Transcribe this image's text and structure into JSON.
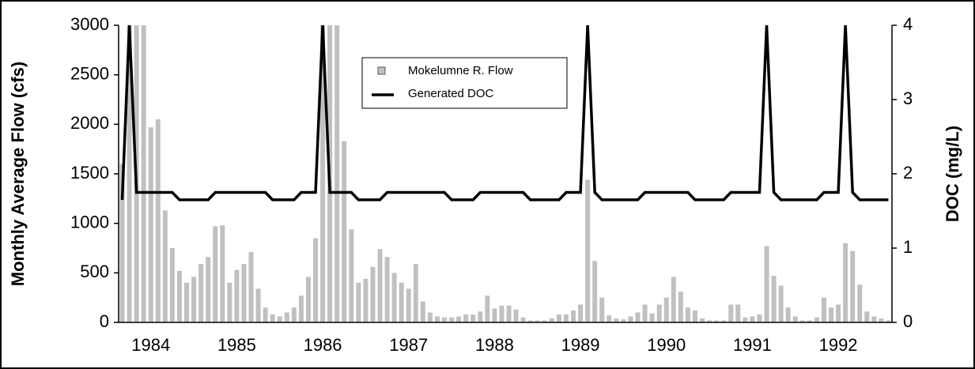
{
  "chart_data": {
    "type": "bar-line",
    "y_label": "Monthly Average Flow (cfs)",
    "y2_label": "DOC (mg/L)",
    "categories": [
      null,
      null,
      null,
      null,
      "1984",
      null,
      null,
      null,
      null,
      null,
      null,
      null,
      null,
      null,
      null,
      null,
      "1985",
      null,
      null,
      null,
      null,
      null,
      null,
      null,
      null,
      null,
      null,
      null,
      "1986",
      null,
      null,
      null,
      null,
      null,
      null,
      null,
      null,
      null,
      null,
      null,
      "1987",
      null,
      null,
      null,
      null,
      null,
      null,
      null,
      null,
      null,
      null,
      null,
      "1988",
      null,
      null,
      null,
      null,
      null,
      null,
      null,
      null,
      null,
      null,
      null,
      "1989",
      null,
      null,
      null,
      null,
      null,
      null,
      null,
      null,
      null,
      null,
      null,
      "1990",
      null,
      null,
      null,
      null,
      null,
      null,
      null,
      null,
      null,
      null,
      null,
      "1991",
      null,
      null,
      null,
      null,
      null,
      null,
      null,
      null,
      null,
      null,
      null,
      "1992",
      null,
      null,
      null,
      null,
      null,
      null,
      null
    ],
    "series": [
      {
        "name": "Mokelumne R. Flow",
        "kind": "bar",
        "color": "#c0c0c0",
        "values": [
          1600,
          3000,
          3000,
          3000,
          1970,
          2050,
          1130,
          750,
          520,
          400,
          460,
          590,
          660,
          970,
          980,
          400,
          530,
          590,
          710,
          340,
          150,
          80,
          60,
          100,
          150,
          270,
          460,
          850,
          3000,
          3000,
          3000,
          1830,
          940,
          400,
          440,
          560,
          740,
          660,
          500,
          400,
          340,
          590,
          210,
          100,
          60,
          50,
          50,
          60,
          80,
          80,
          110,
          270,
          140,
          170,
          170,
          130,
          50,
          20,
          20,
          20,
          40,
          80,
          80,
          120,
          180,
          1440,
          620,
          250,
          70,
          40,
          30,
          60,
          100,
          180,
          90,
          180,
          250,
          460,
          310,
          150,
          120,
          40,
          20,
          20,
          20,
          180,
          180,
          50,
          60,
          80,
          770,
          470,
          370,
          150,
          60,
          20,
          20,
          50,
          250,
          150,
          180,
          800,
          720,
          380,
          110,
          60,
          40,
          20
        ]
      },
      {
        "name": "Generated DOC",
        "kind": "line",
        "axis": "y2",
        "color": "#000000",
        "values": [
          1.65,
          4,
          1.75,
          1.75,
          1.75,
          1.75,
          1.75,
          1.75,
          1.65,
          1.65,
          1.65,
          1.65,
          1.65,
          1.75,
          1.75,
          1.75,
          1.75,
          1.75,
          1.75,
          1.75,
          1.75,
          1.65,
          1.65,
          1.65,
          1.65,
          1.75,
          1.75,
          1.75,
          4,
          1.75,
          1.75,
          1.75,
          1.75,
          1.65,
          1.65,
          1.65,
          1.65,
          1.75,
          1.75,
          1.75,
          1.75,
          1.75,
          1.75,
          1.75,
          1.75,
          1.75,
          1.65,
          1.65,
          1.65,
          1.65,
          1.75,
          1.75,
          1.75,
          1.75,
          1.75,
          1.75,
          1.75,
          1.65,
          1.65,
          1.65,
          1.65,
          1.65,
          1.75,
          1.75,
          1.75,
          4,
          1.75,
          1.65,
          1.65,
          1.65,
          1.65,
          1.65,
          1.65,
          1.75,
          1.75,
          1.75,
          1.75,
          1.75,
          1.75,
          1.75,
          1.65,
          1.65,
          1.65,
          1.65,
          1.65,
          1.75,
          1.75,
          1.75,
          1.75,
          1.75,
          4,
          1.75,
          1.65,
          1.65,
          1.65,
          1.65,
          1.65,
          1.65,
          1.75,
          1.75,
          1.75,
          4,
          1.75,
          1.65,
          1.65,
          1.65,
          1.65,
          1.65
        ]
      }
    ],
    "ylim": [
      0,
      3000
    ],
    "yticks": [
      0,
      500,
      1000,
      1500,
      2000,
      2500,
      3000
    ],
    "y2lim": [
      0,
      4
    ],
    "y2ticks": [
      0,
      1,
      2,
      3,
      4
    ]
  }
}
